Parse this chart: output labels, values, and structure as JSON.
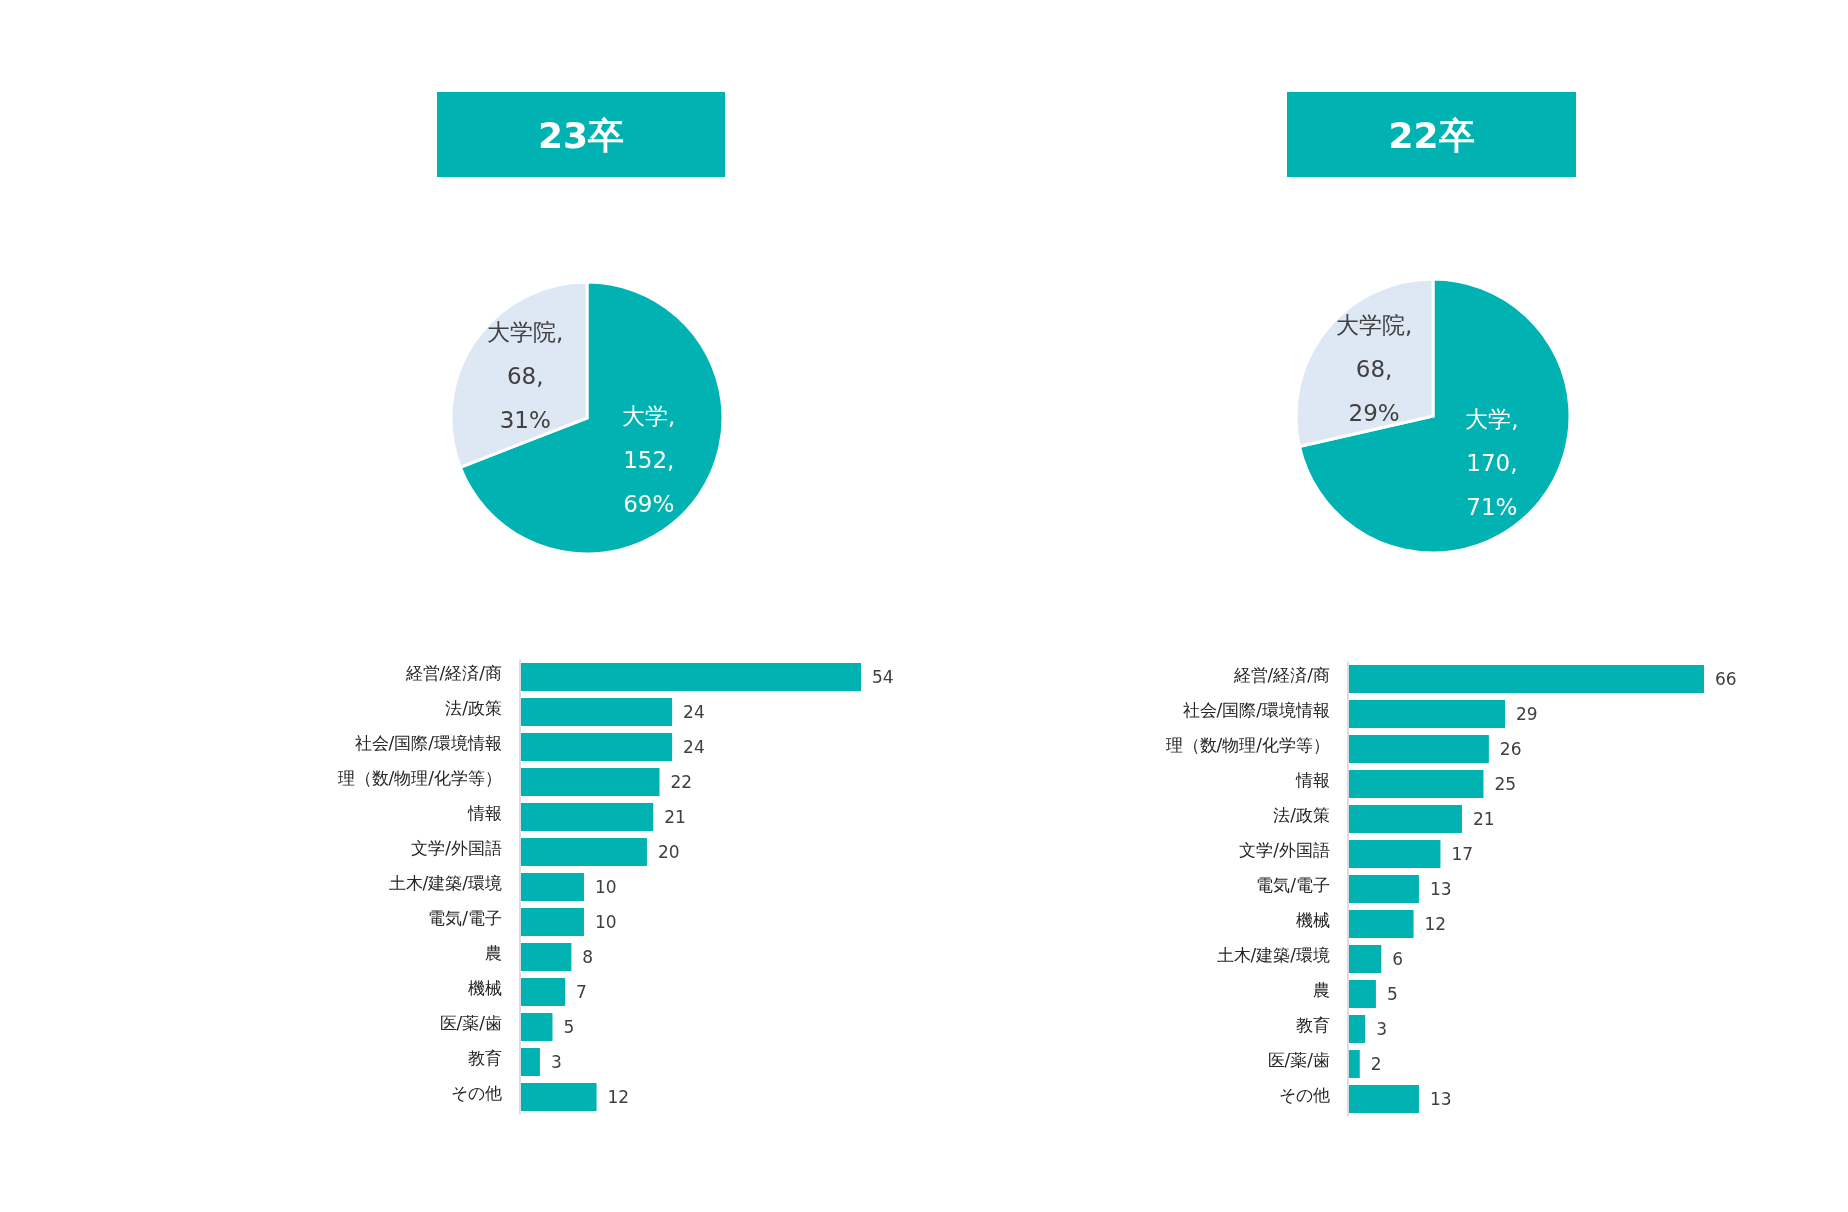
{
  "chart_data": [
    {
      "type": "pie",
      "title": "23卒",
      "categories": [
        "大学",
        "大学院"
      ],
      "values": [
        152,
        68
      ],
      "colors": [
        "#00b2b2",
        "#dee8f4"
      ],
      "value_labels": [
        ",\n152,\n69%",
        ",\n68,\n31%"
      ]
    },
    {
      "type": "pie",
      "title": "22卒",
      "categories": [
        "大学",
        "大学院"
      ],
      "values": [
        170,
        68
      ],
      "colors": [
        "#00b2b2",
        "#dee8f4"
      ],
      "value_labels": [
        ",\n170,\n71%",
        ",\n68,\n29%"
      ]
    },
    {
      "type": "bar",
      "orientation": "horizontal",
      "data_labels": true,
      "color": "#00b2b2",
      "categories": [
        "経営/経済/商",
        "法/政策",
        "社会/国際/環境情報",
        "理（数/物理/化学等）",
        "情報",
        "文学/外国語",
        "土木/建築/環境",
        "電気/電子",
        "農",
        "機械",
        "医/薬/歯",
        "教育",
        "その他"
      ],
      "values": [
        54,
        24,
        24,
        22,
        21,
        20,
        10,
        10,
        8,
        7,
        5,
        3,
        12
      ]
    },
    {
      "type": "bar",
      "orientation": "horizontal",
      "data_labels": true,
      "color": "#00b2b2",
      "categories": [
        "経営/経済/商",
        "社会/国際/環境情報",
        "理（数/物理/化学等）",
        "情報",
        "法/政策",
        "文学/外国語",
        "電気/電子",
        "機械",
        "土木/建築/環境",
        "農",
        "教育",
        "医/薬/歯",
        "その他"
      ],
      "values": [
        66,
        29,
        26,
        25,
        21,
        17,
        13,
        12,
        6,
        5,
        3,
        2,
        13
      ]
    }
  ]
}
